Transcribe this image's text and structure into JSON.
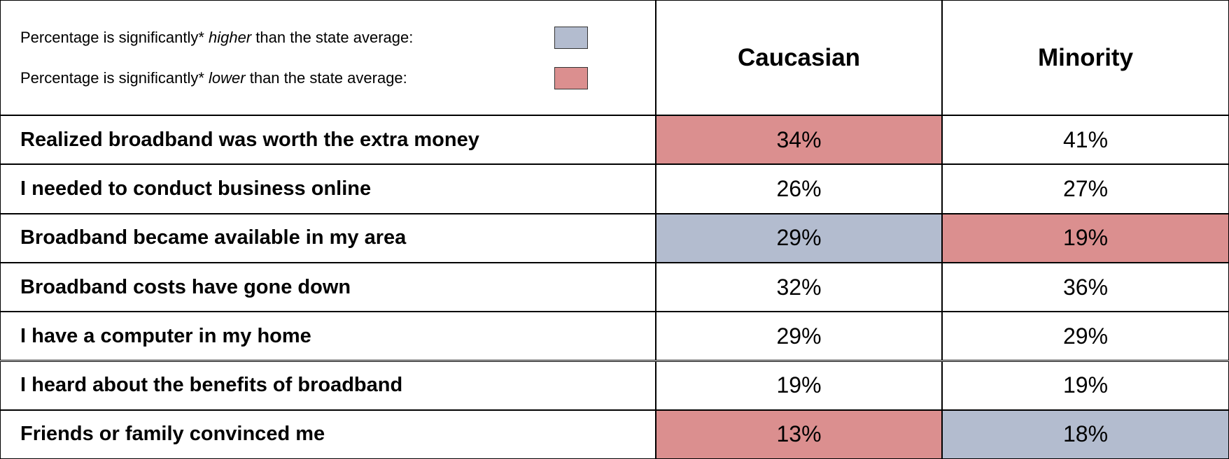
{
  "legend": [
    {
      "before": "Percentage is significantly* ",
      "emphasis": "higher",
      "after": " than the state average:",
      "color": "#b3bccf"
    },
    {
      "before": "Percentage is significantly* ",
      "emphasis": "lower",
      "after": " than the state average:",
      "color": "#db8f8f"
    }
  ],
  "table": {
    "columns": [
      "Caucasian",
      "Minority"
    ],
    "rows": [
      {
        "label": "Realized broadband was worth the extra money",
        "cells": [
          {
            "text": "34%",
            "color": "#db8f8f"
          },
          {
            "text": "41%"
          }
        ]
      },
      {
        "label": "I needed to conduct business online",
        "cells": [
          {
            "text": "26%"
          },
          {
            "text": "27%"
          }
        ]
      },
      {
        "label": "Broadband became available in my area",
        "cells": [
          {
            "text": "29%",
            "color": "#b3bccf"
          },
          {
            "text": "19%",
            "color": "#db8f8f"
          }
        ]
      },
      {
        "label": "Broadband costs have gone down",
        "cells": [
          {
            "text": "32%"
          },
          {
            "text": "36%"
          }
        ]
      },
      {
        "label": "I have a computer in my home",
        "cells": [
          {
            "text": "29%"
          },
          {
            "text": "29%"
          }
        ]
      },
      {
        "label": "I heard about the benefits of broadband",
        "cells": [
          {
            "text": "19%"
          },
          {
            "text": "19%"
          }
        ]
      },
      {
        "label": "Friends or family convinced me",
        "cells": [
          {
            "text": "13%",
            "color": "#db8f8f"
          },
          {
            "text": "18%",
            "color": "#b3bccf"
          }
        ]
      }
    ]
  }
}
